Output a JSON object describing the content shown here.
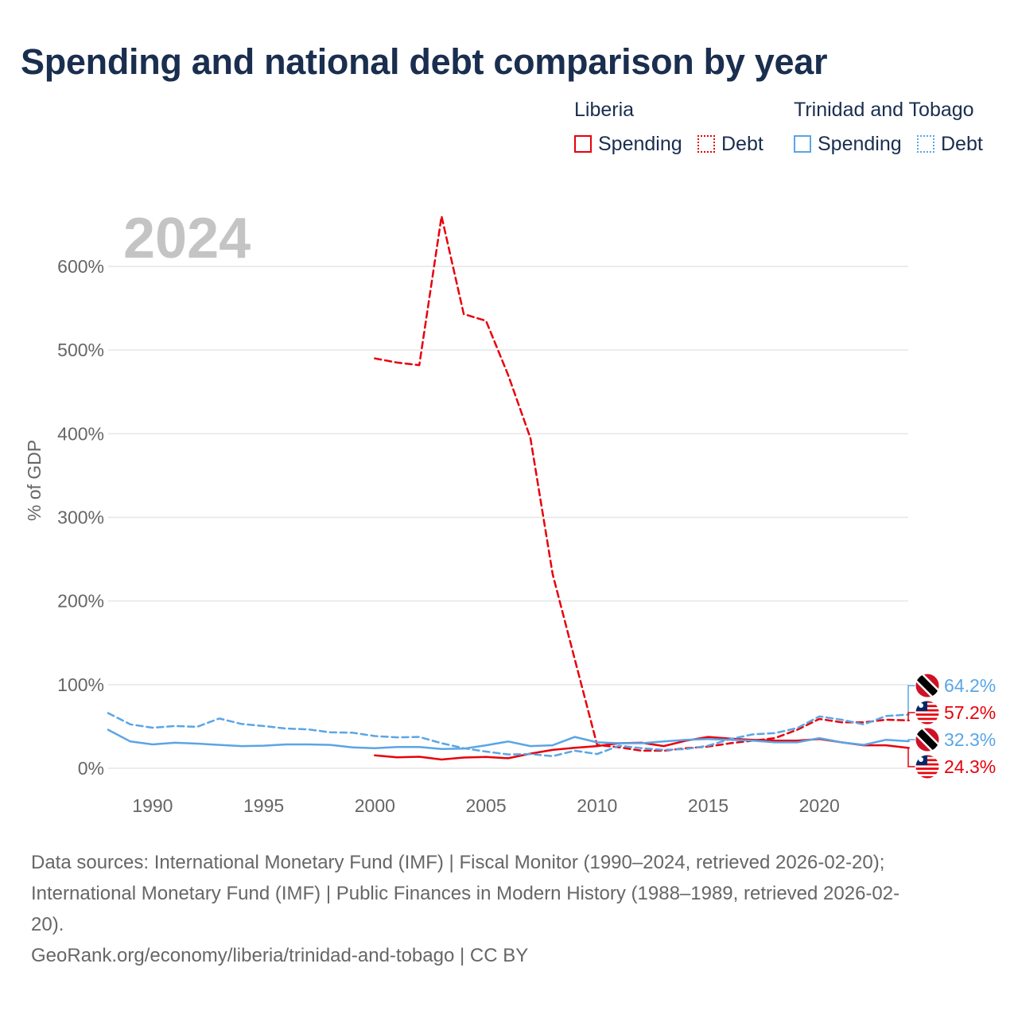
{
  "title": "Spending and national debt comparison by year",
  "legend": {
    "liberia": {
      "country": "Liberia",
      "spending": "Spending",
      "debt": "Debt"
    },
    "tt": {
      "country": "Trinidad and Tobago",
      "spending": "Spending",
      "debt": "Debt"
    }
  },
  "colors": {
    "liberia": "#e8000b",
    "trinidad_and_tobago": "#5aa5e6",
    "grid": "#e6e6e6",
    "flag_tt_red": "#ce1126",
    "flag_lr_blue": "#002868"
  },
  "footer": {
    "line1": "Data sources: International Monetary Fund (IMF) | Fiscal Monitor (1990–2024, retrieved 2026-02-20);",
    "line2": "International Monetary Fund (IMF) | Public Finances in Modern History (1988–1989, retrieved 2026-02-",
    "line3": "20).",
    "line4": "GeoRank.org/economy/liberia/trinidad-and-tobago | CC BY"
  },
  "chart_data": {
    "type": "line",
    "title": "Spending and national debt comparison by year",
    "current_year": "2024",
    "ylabel": "% of GDP",
    "xlabel": "",
    "xlim": [
      1988,
      2024
    ],
    "ylim": [
      0,
      600
    ],
    "x_ticks": [
      1990,
      1995,
      2000,
      2005,
      2010,
      2015,
      2020
    ],
    "y_ticks": [
      0,
      100,
      200,
      300,
      400,
      500,
      600
    ],
    "y_tick_labels": [
      "0%",
      "100%",
      "200%",
      "300%",
      "400%",
      "500%",
      "600%"
    ],
    "series": [
      {
        "name": "Liberia Spending",
        "country": "Liberia",
        "style": "solid",
        "color": "#e8000b",
        "x": [
          2000,
          2001,
          2002,
          2003,
          2004,
          2005,
          2006,
          2007,
          2008,
          2009,
          2010,
          2011,
          2012,
          2013,
          2014,
          2015,
          2016,
          2017,
          2018,
          2019,
          2020,
          2021,
          2022,
          2023,
          2024
        ],
        "values": [
          15.5,
          13,
          13.8,
          10.5,
          12.8,
          13.5,
          12,
          17.5,
          22,
          24.5,
          26.5,
          30,
          30.5,
          26.5,
          33,
          37.5,
          35.5,
          34,
          33,
          33,
          35,
          31,
          27.5,
          27.5,
          24.3
        ]
      },
      {
        "name": "Liberia Debt",
        "country": "Liberia",
        "style": "dashed",
        "color": "#e8000b",
        "x": [
          2000,
          2001,
          2002,
          2003,
          2004,
          2005,
          2006,
          2007,
          2008,
          2009,
          2010,
          2011,
          2012,
          2013,
          2014,
          2015,
          2016,
          2017,
          2018,
          2019,
          2020,
          2021,
          2022,
          2023,
          2024
        ],
        "values": [
          490,
          485,
          482,
          660,
          543,
          535,
          470,
          395,
          232,
          130,
          28,
          25,
          21,
          21,
          24,
          26,
          30,
          33,
          36,
          46,
          59,
          55,
          55,
          58,
          57.2
        ]
      },
      {
        "name": "Trinidad and Tobago Spending",
        "country": "Trinidad and Tobago",
        "style": "solid",
        "color": "#5aa5e6",
        "x": [
          1988,
          1989,
          1990,
          1991,
          1992,
          1993,
          1994,
          1995,
          1996,
          1997,
          1998,
          1999,
          2000,
          2001,
          2002,
          2003,
          2004,
          2005,
          2006,
          2007,
          2008,
          2009,
          2010,
          2011,
          2012,
          2013,
          2014,
          2015,
          2016,
          2017,
          2018,
          2019,
          2020,
          2021,
          2022,
          2023,
          2024
        ],
        "values": [
          46,
          32,
          28.5,
          30.5,
          29.5,
          28,
          26.5,
          27,
          28.5,
          28.5,
          28,
          25,
          24,
          25.5,
          25.5,
          23,
          23.5,
          27.5,
          32,
          26.5,
          27.5,
          37.5,
          31,
          30,
          30,
          32,
          34,
          35,
          34,
          33,
          31,
          31,
          36,
          31,
          28,
          34,
          32.3
        ]
      },
      {
        "name": "Trinidad and Tobago Debt",
        "country": "Trinidad and Tobago",
        "style": "dashed",
        "color": "#5aa5e6",
        "x": [
          1988,
          1989,
          1990,
          1991,
          1992,
          1993,
          1994,
          1995,
          1996,
          1997,
          1998,
          1999,
          2000,
          2001,
          2002,
          2003,
          2004,
          2005,
          2006,
          2007,
          2008,
          2009,
          2010,
          2011,
          2012,
          2013,
          2014,
          2015,
          2016,
          2017,
          2018,
          2019,
          2020,
          2021,
          2022,
          2023,
          2024
        ],
        "values": [
          66,
          52.5,
          48.5,
          50.5,
          49.5,
          59.5,
          53,
          50.5,
          47.5,
          46.5,
          43,
          42.5,
          38.5,
          37,
          37.5,
          30,
          24,
          20,
          16.5,
          17,
          14.5,
          21,
          17,
          27,
          24,
          22,
          23,
          27,
          35,
          40.5,
          42,
          48,
          62,
          58,
          52.5,
          62.5,
          64.2
        ]
      }
    ],
    "end_labels": [
      {
        "series": "Trinidad and Tobago Debt",
        "text": "64.2%",
        "flag": "trinidad-and-tobago"
      },
      {
        "series": "Liberia Debt",
        "text": "57.2%",
        "flag": "liberia"
      },
      {
        "series": "Trinidad and Tobago Spending",
        "text": "32.3%",
        "flag": "trinidad-and-tobago"
      },
      {
        "series": "Liberia Spending",
        "text": "24.3%",
        "flag": "liberia"
      }
    ]
  }
}
